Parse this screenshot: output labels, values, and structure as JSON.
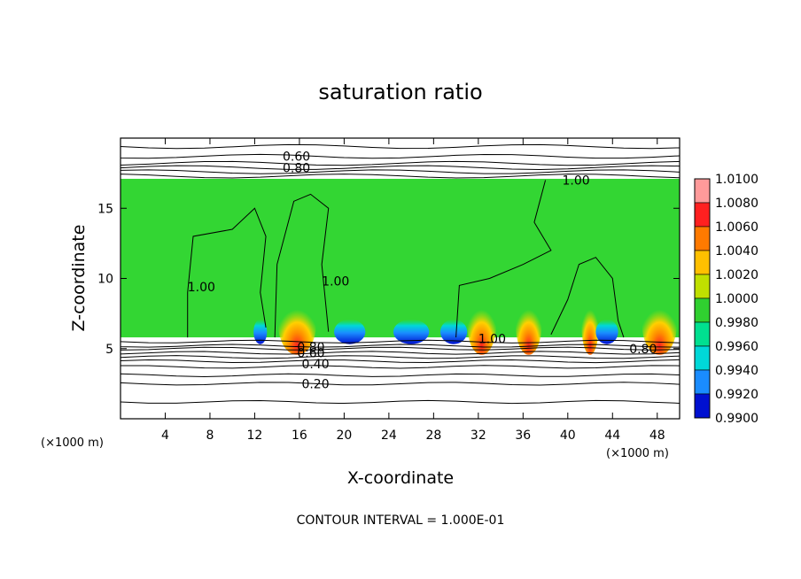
{
  "chart_data": {
    "type": "heatmap",
    "title": "saturation ratio",
    "xlabel": "X-coordinate",
    "ylabel": "Z-coordinate",
    "x_unit": "(×1000 m)",
    "y_unit": "(×1000 m)",
    "xlim": [
      0,
      50
    ],
    "ylim": [
      0,
      20
    ],
    "x_ticks": [
      4,
      8,
      12,
      16,
      20,
      24,
      28,
      32,
      36,
      40,
      44,
      48
    ],
    "y_ticks": [
      5,
      10,
      15
    ],
    "colorbar": {
      "levels": [
        "1.0100",
        "1.0080",
        "1.0060",
        "1.0040",
        "1.0020",
        "1.0000",
        "0.9980",
        "0.9960",
        "0.9940",
        "0.9920",
        "0.9900"
      ],
      "colors": [
        "#ff9a9a",
        "#ff2020",
        "#ff7a00",
        "#ffc000",
        "#c0e000",
        "#30d030",
        "#00e090",
        "#00d8d8",
        "#1a8cff",
        "#0010d0",
        "#6010a0"
      ]
    },
    "cloud_layer": {
      "z_bottom": 5.8,
      "z_top": 17.1,
      "fill_color": "#33d633"
    },
    "contours": [
      {
        "label": "0.60",
        "x": 14.5,
        "z": 18.7
      },
      {
        "label": "0.80",
        "x": 14.5,
        "z": 17.9
      },
      {
        "label": "1.00",
        "x": 39.5,
        "z": 17.0
      },
      {
        "label": "1.00",
        "x": 6.0,
        "z": 9.4
      },
      {
        "label": "1.00",
        "x": 18.0,
        "z": 9.8
      },
      {
        "label": "1.00",
        "x": 32.0,
        "z": 5.7
      },
      {
        "label": "0.80",
        "x": 15.8,
        "z": 5.1
      },
      {
        "label": "0.60",
        "x": 15.8,
        "z": 4.7
      },
      {
        "label": "0.40",
        "x": 16.2,
        "z": 3.9
      },
      {
        "label": "0.20",
        "x": 16.2,
        "z": 2.5
      },
      {
        "label": "0.80",
        "x": 45.5,
        "z": 5.0
      }
    ],
    "footer": "CONTOUR INTERVAL = 1.000E-01"
  }
}
